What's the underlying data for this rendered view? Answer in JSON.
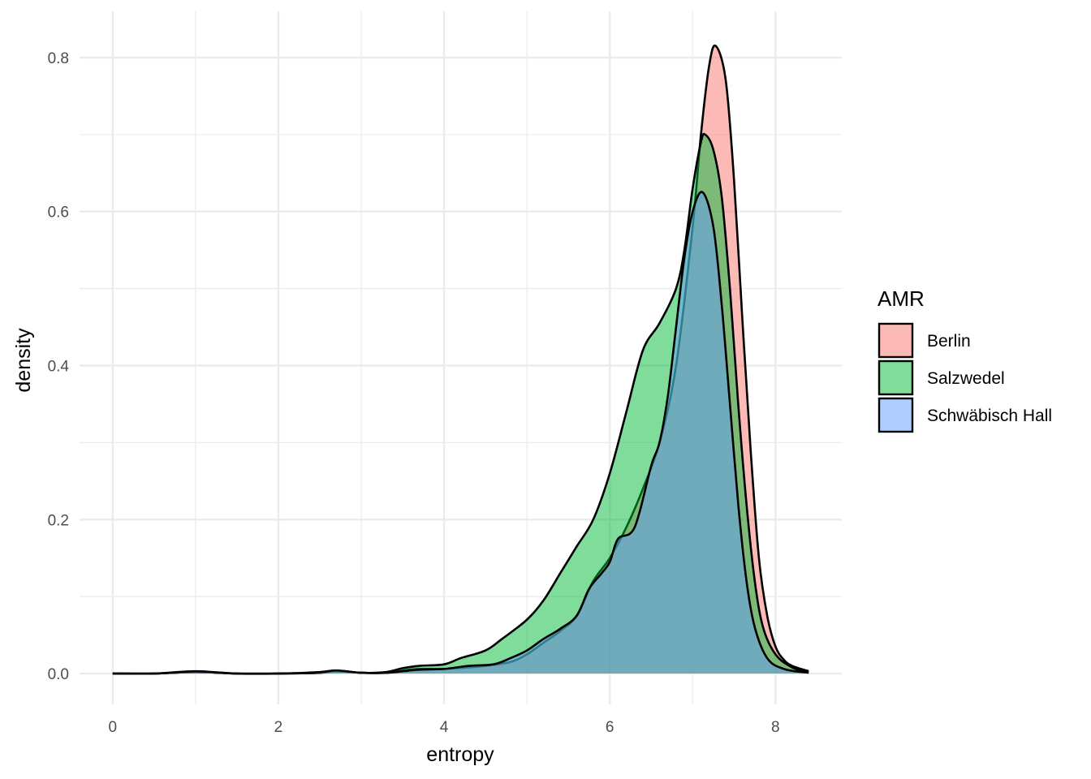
{
  "chart_data": {
    "type": "area",
    "subtype": "density",
    "title": "",
    "xlabel": "entropy",
    "ylabel": "density",
    "xlim": [
      -0.4,
      8.8
    ],
    "ylim": [
      -0.04,
      0.86
    ],
    "x_ticks": [
      0,
      2,
      4,
      6,
      8
    ],
    "x_tick_labels": [
      "0",
      "2",
      "4",
      "6",
      "8"
    ],
    "y_ticks": [
      0.0,
      0.2,
      0.4,
      0.6,
      0.8
    ],
    "y_tick_labels": [
      "0.0",
      "0.2",
      "0.4",
      "0.6",
      "0.8"
    ],
    "grid": true,
    "legend": {
      "title": "AMR",
      "position": "right"
    },
    "fill_opacity": 0.5,
    "series": [
      {
        "name": "Berlin",
        "color": "#F8766D",
        "points": [
          [
            0,
            0
          ],
          [
            0.5,
            0
          ],
          [
            1.0,
            0.002
          ],
          [
            1.5,
            0
          ],
          [
            2.0,
            0
          ],
          [
            2.5,
            0.001
          ],
          [
            2.7,
            0.003
          ],
          [
            3.0,
            0.001
          ],
          [
            3.3,
            0.001
          ],
          [
            3.5,
            0.004
          ],
          [
            3.7,
            0.006
          ],
          [
            4.0,
            0.006
          ],
          [
            4.3,
            0.008
          ],
          [
            4.5,
            0.01
          ],
          [
            4.8,
            0.015
          ],
          [
            5.0,
            0.025
          ],
          [
            5.2,
            0.04
          ],
          [
            5.4,
            0.055
          ],
          [
            5.6,
            0.075
          ],
          [
            5.8,
            0.12
          ],
          [
            6.0,
            0.15
          ],
          [
            6.2,
            0.19
          ],
          [
            6.4,
            0.24
          ],
          [
            6.6,
            0.3
          ],
          [
            6.8,
            0.4
          ],
          [
            7.0,
            0.58
          ],
          [
            7.1,
            0.7
          ],
          [
            7.2,
            0.79
          ],
          [
            7.28,
            0.815
          ],
          [
            7.4,
            0.77
          ],
          [
            7.5,
            0.64
          ],
          [
            7.6,
            0.46
          ],
          [
            7.7,
            0.29
          ],
          [
            7.8,
            0.15
          ],
          [
            7.9,
            0.075
          ],
          [
            8.0,
            0.035
          ],
          [
            8.1,
            0.018
          ],
          [
            8.2,
            0.01
          ],
          [
            8.4,
            0.003
          ]
        ]
      },
      {
        "name": "Salzwedel",
        "color": "#00BA38",
        "points": [
          [
            0,
            0
          ],
          [
            0.5,
            0
          ],
          [
            1.0,
            0.002
          ],
          [
            1.5,
            0
          ],
          [
            2.0,
            0
          ],
          [
            2.5,
            0.001
          ],
          [
            2.7,
            0.004
          ],
          [
            3.0,
            0.001
          ],
          [
            3.3,
            0.002
          ],
          [
            3.5,
            0.007
          ],
          [
            3.7,
            0.01
          ],
          [
            4.0,
            0.012
          ],
          [
            4.2,
            0.02
          ],
          [
            4.5,
            0.03
          ],
          [
            4.7,
            0.045
          ],
          [
            5.0,
            0.07
          ],
          [
            5.2,
            0.095
          ],
          [
            5.4,
            0.13
          ],
          [
            5.6,
            0.165
          ],
          [
            5.8,
            0.2
          ],
          [
            6.0,
            0.26
          ],
          [
            6.2,
            0.34
          ],
          [
            6.4,
            0.42
          ],
          [
            6.6,
            0.455
          ],
          [
            6.8,
            0.5
          ],
          [
            6.9,
            0.55
          ],
          [
            7.0,
            0.63
          ],
          [
            7.1,
            0.69
          ],
          [
            7.15,
            0.7
          ],
          [
            7.25,
            0.68
          ],
          [
            7.35,
            0.62
          ],
          [
            7.45,
            0.5
          ],
          [
            7.55,
            0.35
          ],
          [
            7.65,
            0.22
          ],
          [
            7.75,
            0.12
          ],
          [
            7.85,
            0.06
          ],
          [
            8.0,
            0.025
          ],
          [
            8.2,
            0.008
          ],
          [
            8.4,
            0.002
          ]
        ]
      },
      {
        "name": "Schwäbisch Hall",
        "color": "#619CFF",
        "points": [
          [
            0,
            0
          ],
          [
            0.5,
            0
          ],
          [
            1.0,
            0.003
          ],
          [
            1.5,
            0
          ],
          [
            2.0,
            0
          ],
          [
            2.5,
            0.002
          ],
          [
            2.7,
            0.004
          ],
          [
            3.0,
            0.001
          ],
          [
            3.3,
            0.001
          ],
          [
            3.5,
            0.003
          ],
          [
            3.7,
            0.005
          ],
          [
            4.0,
            0.006
          ],
          [
            4.3,
            0.01
          ],
          [
            4.6,
            0.012
          ],
          [
            4.8,
            0.02
          ],
          [
            5.0,
            0.03
          ],
          [
            5.2,
            0.045
          ],
          [
            5.4,
            0.058
          ],
          [
            5.6,
            0.075
          ],
          [
            5.75,
            0.11
          ],
          [
            5.9,
            0.13
          ],
          [
            6.0,
            0.145
          ],
          [
            6.1,
            0.175
          ],
          [
            6.3,
            0.19
          ],
          [
            6.5,
            0.27
          ],
          [
            6.6,
            0.3
          ],
          [
            6.7,
            0.36
          ],
          [
            6.8,
            0.45
          ],
          [
            6.9,
            0.54
          ],
          [
            7.0,
            0.6
          ],
          [
            7.12,
            0.625
          ],
          [
            7.25,
            0.58
          ],
          [
            7.35,
            0.48
          ],
          [
            7.45,
            0.35
          ],
          [
            7.55,
            0.22
          ],
          [
            7.65,
            0.12
          ],
          [
            7.75,
            0.06
          ],
          [
            7.9,
            0.02
          ],
          [
            8.1,
            0.006
          ],
          [
            8.4,
            0.001
          ]
        ]
      }
    ]
  }
}
